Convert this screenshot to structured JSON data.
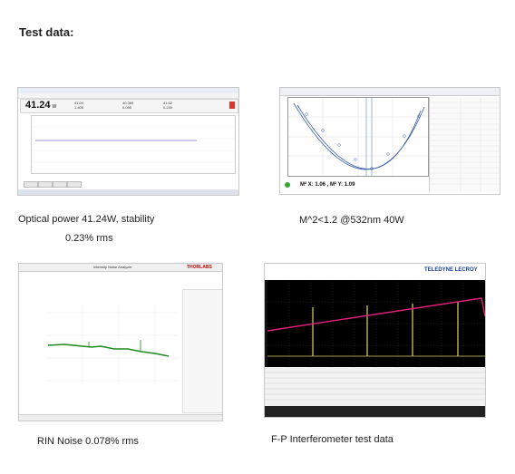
{
  "heading": "Test data:",
  "captions": {
    "power_line1": "Optical power 41.24W, stability",
    "power_line2": "0.23% rms",
    "m2": "M^2<1.2 @532nm 40W",
    "rin": "RIN Noise 0.078% rms",
    "fp": "F-P Interferometer test data"
  },
  "power_meter": {
    "readout": "41.24",
    "unit": "W",
    "stats": [
      "41.04",
      "1.405",
      "40.369",
      "0.095",
      "41.62",
      "0.230"
    ]
  },
  "m2_shot": {
    "result": "M² X: 1.06 , M² Y: 1.09"
  },
  "rin_shot": {
    "title": "Intensity Noise Analyzer",
    "logo": "THORLABS"
  },
  "fp_shot": {
    "logo": "TELEDYNE LECROY"
  },
  "colors": {
    "power_trace": "#7a6fd0",
    "m2_curve": "#3b5fa8",
    "rin_trace": "#1f8a1f",
    "fp_ramp": "#e0207f",
    "fp_peaks": "#d8d86a"
  }
}
